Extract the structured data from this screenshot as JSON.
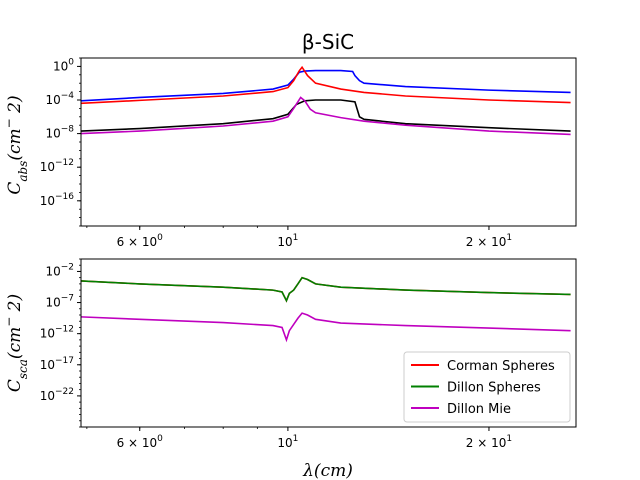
{
  "title": "β-SiC",
  "xlabel": "λ(cm)",
  "chart_data": [
    {
      "type": "line",
      "panel": "top",
      "ylabel": "C_abs(cm^-2)",
      "xscale": "log",
      "yscale": "log",
      "xlim": [
        4.9,
        27.0
      ],
      "ylim": [
        1e-19,
        10
      ],
      "xticks": [
        {
          "value": 6,
          "label": "6 × 10^0"
        },
        {
          "value": 10,
          "label": "10^1"
        },
        {
          "value": 20,
          "label": "2 × 10^1"
        }
      ],
      "yticks": [
        {
          "value": 1,
          "label": "10^0"
        },
        {
          "value": 0.0001,
          "label": "10^-4"
        },
        {
          "value": 1e-08,
          "label": "10^-8"
        },
        {
          "value": 1e-12,
          "label": "10^-12"
        },
        {
          "value": 1e-16,
          "label": "10^-16"
        }
      ],
      "series": [
        {
          "color": "#0000ff",
          "x": [
            4.9,
            6,
            8,
            9.5,
            10,
            10.2,
            10.4,
            10.6,
            11,
            11.5,
            12,
            12.5,
            12.6,
            12.8,
            13,
            15,
            20,
            26.5
          ],
          "y": [
            8e-05,
            0.0002,
            0.0006,
            0.002,
            0.006,
            0.03,
            0.2,
            0.28,
            0.32,
            0.32,
            0.32,
            0.25,
            0.08,
            0.02,
            0.01,
            0.004,
            0.0015,
            0.0008
          ]
        },
        {
          "color": "#ff0000",
          "x": [
            4.9,
            6,
            8,
            9.5,
            10,
            10.2,
            10.4,
            10.5,
            10.7,
            11,
            12,
            13,
            15,
            20,
            26.5
          ],
          "y": [
            4e-05,
            9e-05,
            0.0003,
            0.001,
            0.003,
            0.02,
            0.3,
            0.8,
            0.08,
            0.01,
            0.002,
            0.0008,
            0.0003,
            0.0001,
            5e-05
          ]
        },
        {
          "color": "#000000",
          "x": [
            4.9,
            6,
            8,
            9.5,
            10,
            10.3,
            10.6,
            11,
            12,
            12.6,
            12.8,
            13,
            15,
            20,
            26.5
          ],
          "y": [
            2e-08,
            4e-08,
            1.5e-07,
            6e-07,
            2e-06,
            3e-05,
            8e-05,
            0.0001,
            0.0001,
            6e-05,
            1e-06,
            5e-07,
            1.5e-07,
            5e-08,
            2e-08
          ]
        },
        {
          "color": "#bf00bf",
          "x": [
            4.9,
            6,
            8,
            9.5,
            10,
            10.2,
            10.45,
            10.6,
            10.8,
            11,
            12,
            13,
            15,
            20,
            26.5
          ],
          "y": [
            1e-08,
            2e-08,
            8e-08,
            3e-07,
            1e-06,
            1e-05,
            0.0002,
            8e-05,
            8e-06,
            3e-06,
            8e-07,
            3e-07,
            1e-07,
            2e-08,
            8e-09
          ]
        }
      ]
    },
    {
      "type": "line",
      "panel": "bottom",
      "ylabel": "C_sca(cm^-2)",
      "xscale": "log",
      "yscale": "log",
      "xlim": [
        4.9,
        27.0
      ],
      "ylim": [
        1e-27,
        1
      ],
      "xticks": [
        {
          "value": 6,
          "label": "6 × 10^0"
        },
        {
          "value": 10,
          "label": "10^1"
        },
        {
          "value": 20,
          "label": "2 × 10^1"
        }
      ],
      "yticks": [
        {
          "value": 0.01,
          "label": "10^-2"
        },
        {
          "value": 1e-07,
          "label": "10^-7"
        },
        {
          "value": 1e-12,
          "label": "10^-12"
        },
        {
          "value": 1e-17,
          "label": "10^-17"
        },
        {
          "value": 1e-22,
          "label": "10^-22"
        }
      ],
      "legend": {
        "position": "lower right",
        "entries": [
          {
            "label": "Corman Spheres",
            "color": "#ff0000"
          },
          {
            "label": "Dillon Spheres",
            "color": "#008000"
          },
          {
            "label": "Dillon Mie",
            "color": "#bf00bf"
          }
        ]
      },
      "series": [
        {
          "name": "Corman Spheres",
          "color": "#ff0000",
          "x": [
            4.9,
            6,
            8,
            9.5,
            9.8,
            9.95,
            10.05,
            10.2,
            10.35,
            10.5,
            10.7,
            11,
            12,
            15,
            20,
            26.5
          ],
          "y": [
            0.0003,
            0.0001,
            3e-05,
            1e-05,
            5e-06,
            2e-07,
            3e-06,
            1e-05,
            0.0001,
            0.001,
            0.0005,
            0.0001,
            3e-05,
            1e-05,
            4e-06,
            2e-06
          ]
        },
        {
          "name": "Dillon Spheres",
          "color": "#008000",
          "x": [
            4.9,
            6,
            8,
            9.5,
            9.8,
            9.95,
            10.05,
            10.2,
            10.35,
            10.5,
            10.7,
            11,
            12,
            15,
            20,
            26.5
          ],
          "y": [
            0.0003,
            0.0001,
            3e-05,
            1e-05,
            5e-06,
            2e-07,
            3e-06,
            1e-05,
            0.0001,
            0.001,
            0.0005,
            0.0001,
            3e-05,
            1e-05,
            4e-06,
            2e-06
          ]
        },
        {
          "name": "Dillon Mie",
          "color": "#bf00bf",
          "x": [
            4.9,
            6,
            8,
            9.5,
            9.8,
            9.95,
            10.05,
            10.2,
            10.35,
            10.5,
            10.7,
            11,
            12,
            15,
            20,
            26.5
          ],
          "y": [
            5e-10,
            2e-10,
            6e-11,
            2e-11,
            1e-11,
            1e-13,
            3e-12,
            3e-11,
            3e-10,
            2e-09,
            1e-09,
            2e-10,
            5e-11,
            2e-11,
            8e-12,
            3e-12
          ]
        }
      ]
    }
  ]
}
